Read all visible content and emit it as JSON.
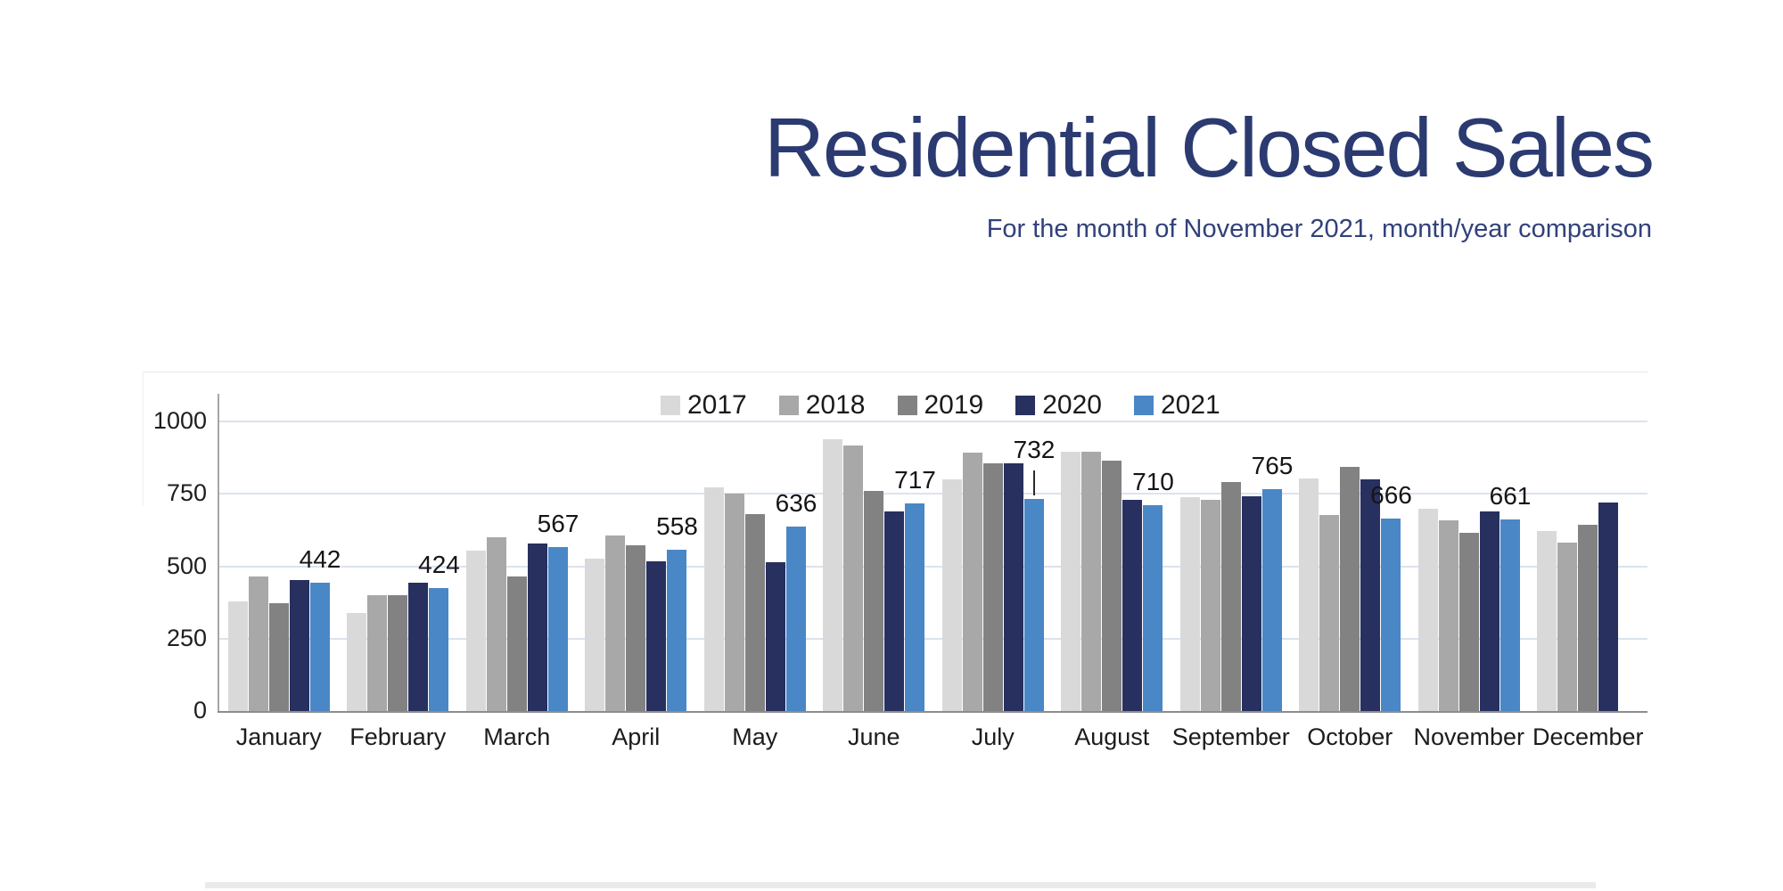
{
  "page": {
    "background": "#ffffff"
  },
  "theme": {
    "title_color": "#2b3a70",
    "subtitle_color": "#31417a",
    "gridline_color": "#dbe3ee",
    "axis_color": "#a6a6a6",
    "tick_text_color": "#1e1e1e",
    "data_label_color": "#151515"
  },
  "chart_data": {
    "type": "bar",
    "title": "Residential Closed Sales",
    "subtitle": "For the month of November 2021, month/year comparison",
    "categories": [
      "January",
      "February",
      "March",
      "April",
      "May",
      "June",
      "July",
      "August",
      "September",
      "October",
      "November",
      "December"
    ],
    "series": [
      {
        "name": "2017",
        "color": "#d9d9d9",
        "values": [
          380,
          338,
          555,
          526,
          772,
          939,
          800,
          895,
          739,
          803,
          698,
          622
        ]
      },
      {
        "name": "2018",
        "color": "#a8a8a8",
        "values": [
          465,
          400,
          600,
          605,
          750,
          917,
          892,
          895,
          729,
          677,
          658,
          581
        ]
      },
      {
        "name": "2019",
        "color": "#828282",
        "values": [
          372,
          400,
          465,
          572,
          680,
          760,
          855,
          865,
          791,
          843,
          615,
          643
        ]
      },
      {
        "name": "2020",
        "color": "#27305f",
        "values": [
          453,
          443,
          578,
          517,
          514,
          690,
          855,
          730,
          741,
          800,
          689,
          720
        ]
      },
      {
        "name": "2021",
        "color": "#4a87c6",
        "values": [
          442,
          424,
          567,
          558,
          636,
          717,
          732,
          710,
          765,
          666,
          661,
          null
        ]
      }
    ],
    "data_labels": {
      "series": "2021",
      "values": [
        442,
        424,
        567,
        558,
        636,
        717,
        732,
        710,
        765,
        666,
        661,
        null
      ],
      "leader_line_category": "July"
    },
    "legend": {
      "entries": [
        "2017",
        "2018",
        "2019",
        "2020",
        "2021"
      ],
      "position": "top-center-inside"
    },
    "y_ticks": [
      0,
      250,
      500,
      750,
      1000
    ],
    "ylim": [
      0,
      1000
    ],
    "xlabel": "",
    "ylabel": "",
    "grid": true
  }
}
